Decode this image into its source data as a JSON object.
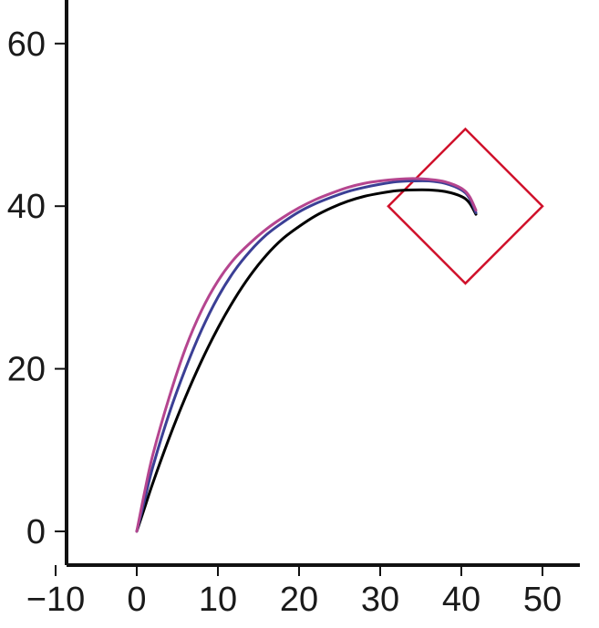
{
  "chart_data": {
    "type": "line",
    "title": "",
    "xlabel": "",
    "ylabel": "",
    "xlim": [
      -10,
      54
    ],
    "ylim": [
      -4,
      66
    ],
    "grid": false,
    "legend": "none",
    "x_ticks": [
      -10,
      0,
      10,
      20,
      30,
      40,
      50
    ],
    "x_tick_labels": [
      "−10",
      "0",
      "10",
      "20",
      "30",
      "40",
      "50"
    ],
    "y_ticks": [
      0,
      20,
      40,
      60
    ],
    "y_tick_labels": [
      "0",
      "20",
      "40",
      "60"
    ],
    "series": [
      {
        "color": "#000000",
        "points": [
          [
            0,
            0
          ],
          [
            1,
            3
          ],
          [
            2,
            6
          ],
          [
            4,
            11.5
          ],
          [
            6,
            16.5
          ],
          [
            8,
            21
          ],
          [
            10,
            25
          ],
          [
            12,
            28.5
          ],
          [
            14,
            31.5
          ],
          [
            16,
            34
          ],
          [
            18,
            36
          ],
          [
            20,
            37.5
          ],
          [
            22,
            38.8
          ],
          [
            24,
            39.8
          ],
          [
            26,
            40.6
          ],
          [
            28,
            41.2
          ],
          [
            30,
            41.6
          ],
          [
            32,
            41.9
          ],
          [
            34,
            42
          ],
          [
            36,
            42
          ],
          [
            38,
            41.8
          ],
          [
            40,
            41.2
          ],
          [
            41,
            40.4
          ],
          [
            41.8,
            39
          ]
        ]
      },
      {
        "color": "#3b3f95",
        "points": [
          [
            0,
            0
          ],
          [
            1,
            4
          ],
          [
            2,
            8
          ],
          [
            4,
            14.5
          ],
          [
            6,
            20
          ],
          [
            8,
            24.8
          ],
          [
            10,
            28.8
          ],
          [
            12,
            32
          ],
          [
            14,
            34.5
          ],
          [
            16,
            36.5
          ],
          [
            18,
            38
          ],
          [
            20,
            39.3
          ],
          [
            22,
            40.3
          ],
          [
            24,
            41.1
          ],
          [
            26,
            41.8
          ],
          [
            28,
            42.3
          ],
          [
            30,
            42.7
          ],
          [
            32,
            43
          ],
          [
            34,
            43.1
          ],
          [
            36,
            43.1
          ],
          [
            38,
            42.8
          ],
          [
            40,
            42
          ],
          [
            41,
            41
          ],
          [
            41.8,
            39.2
          ]
        ]
      },
      {
        "color": "#b5458f",
        "points": [
          [
            0,
            0
          ],
          [
            1,
            5
          ],
          [
            2,
            9.5
          ],
          [
            4,
            16.5
          ],
          [
            6,
            22.5
          ],
          [
            8,
            27.2
          ],
          [
            10,
            30.8
          ],
          [
            12,
            33.5
          ],
          [
            14,
            35.5
          ],
          [
            16,
            37.2
          ],
          [
            18,
            38.6
          ],
          [
            20,
            39.8
          ],
          [
            22,
            40.8
          ],
          [
            24,
            41.6
          ],
          [
            26,
            42.3
          ],
          [
            28,
            42.8
          ],
          [
            30,
            43.1
          ],
          [
            32,
            43.3
          ],
          [
            34,
            43.4
          ],
          [
            36,
            43.3
          ],
          [
            38,
            43
          ],
          [
            40,
            42.2
          ],
          [
            41,
            41.2
          ],
          [
            41.8,
            39.5
          ]
        ]
      }
    ],
    "annotations": [
      {
        "shape": "diamond",
        "color": "#d0112b",
        "center": [
          40.5,
          40
        ],
        "half_width": 9.5,
        "half_height": 9.5
      }
    ]
  }
}
